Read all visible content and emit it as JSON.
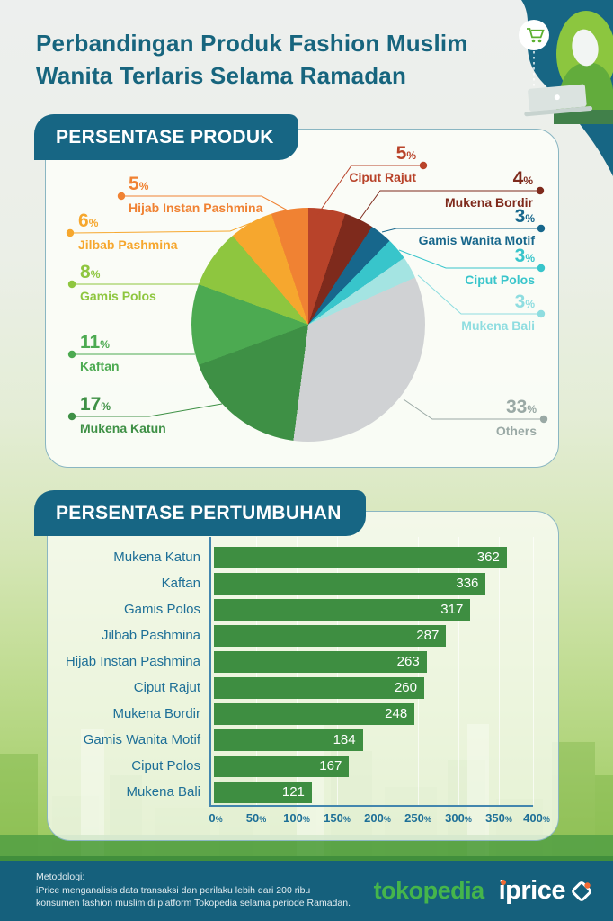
{
  "page": {
    "title_line1": "Perbandingan Produk Fashion Muslim",
    "title_line2": "Wanita Terlaris Selama Ramadan"
  },
  "units": {
    "percent": "%"
  },
  "sections": {
    "produk_heading": "PERSENTASE PRODUK",
    "pertumbuhan_heading": "PERSENTASE PERTUMBUHAN"
  },
  "chart_data": [
    {
      "type": "pie",
      "title": "PERSENTASE PRODUK",
      "unit": "%",
      "start_angle_deg": 0,
      "direction": "clockwise",
      "slices": [
        {
          "label": "Ciput Rajut",
          "value": 5,
          "color": "#b8432a"
        },
        {
          "label": "Mukena Bordir",
          "value": 4,
          "color": "#7e2a1c"
        },
        {
          "label": "Gamis Wanita Motif",
          "value": 3,
          "color": "#17678c"
        },
        {
          "label": "Ciput Polos",
          "value": 3,
          "color": "#38c5cb"
        },
        {
          "label": "Mukena Bali",
          "value": 3,
          "color": "#a4e4e2",
          "label_color": "#8edde0"
        },
        {
          "label": "Others",
          "value": 33,
          "color": "#d0d2d4",
          "label_color": "#9aa9a5"
        },
        {
          "label": "Mukena Katun",
          "value": 17,
          "color": "#3e9045"
        },
        {
          "label": "Kaftan",
          "value": 11,
          "color": "#4caa51"
        },
        {
          "label": "Gamis Polos",
          "value": 8,
          "color": "#8ec63f"
        },
        {
          "label": "Jilbab Pashmina",
          "value": 6,
          "color": "#f6a72e"
        },
        {
          "label": "Hijab Instan Pashmina",
          "value": 5,
          "color": "#f08233"
        }
      ]
    },
    {
      "type": "bar",
      "title": "PERSENTASE PERTUMBUHAN",
      "orientation": "horizontal",
      "unit": "%",
      "categories": [
        "Mukena Katun",
        "Kaftan",
        "Gamis Polos",
        "Jilbab Pashmina",
        "Hijab Instan Pashmina",
        "Ciput Rajut",
        "Mukena Bordir",
        "Gamis Wanita Motif",
        "Ciput Polos",
        "Mukena Bali"
      ],
      "values": [
        362,
        336,
        317,
        287,
        263,
        260,
        248,
        184,
        167,
        121
      ],
      "xlim": [
        0,
        400
      ],
      "ticks": [
        "0",
        "50",
        "100",
        "150",
        "200",
        "250",
        "300",
        "350",
        "400"
      ],
      "bar_color": "#3e8e41",
      "grid": true,
      "legend": false
    }
  ],
  "footer": {
    "methodology_title": "Metodologi:",
    "methodology_line1": "iPrice menganalisis data transaksi dan perilaku lebih dari 200 ribu",
    "methodology_line2": "konsumen fashion muslim di platform Tokopedia selama periode Ramadan.",
    "tokopedia_logo_text": "tokopedia",
    "iprice_logo_text": "iprice"
  }
}
